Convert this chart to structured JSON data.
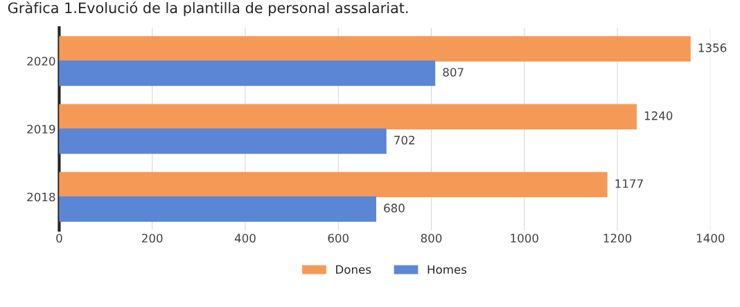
{
  "chart_data": {
    "type": "bar",
    "orientation": "horizontal",
    "title": "Gràfica 1.Evolució de la plantilla de personal assalariat.",
    "categories": [
      "2020",
      "2019",
      "2018"
    ],
    "series": [
      {
        "name": "Dones",
        "color": "#f59a56",
        "values": [
          1356,
          1240,
          1177
        ]
      },
      {
        "name": "Homes",
        "color": "#5b86d6",
        "values": [
          807,
          702,
          680
        ]
      }
    ],
    "xlim": [
      0,
      1400
    ],
    "xticks": [
      0,
      200,
      400,
      600,
      800,
      1000,
      1200,
      1400
    ],
    "grid": "x",
    "legend": "bottom",
    "data_labels": true
  }
}
